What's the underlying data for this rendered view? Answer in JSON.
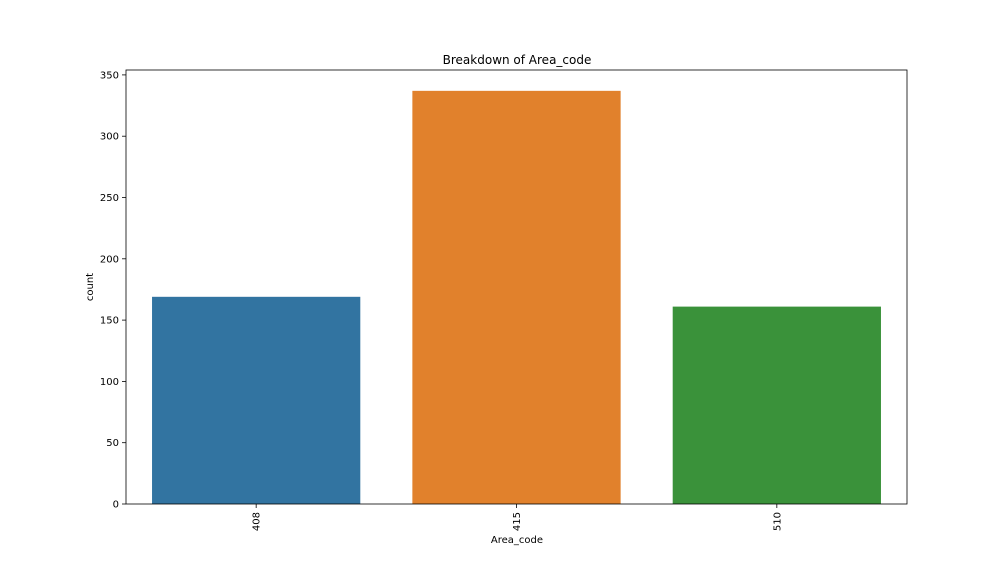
{
  "chart_data": {
    "type": "bar",
    "title": "Breakdown of Area_code",
    "xlabel": "Area_code",
    "ylabel": "count",
    "categories": [
      "408",
      "415",
      "510"
    ],
    "values": [
      169,
      337,
      161
    ],
    "colors": [
      "#3274a1",
      "#e1812c",
      "#3a923a"
    ],
    "ylim": [
      0,
      354
    ],
    "yticks": [
      0,
      50,
      100,
      150,
      200,
      250,
      300,
      350
    ],
    "grid": false,
    "legend": "none"
  }
}
